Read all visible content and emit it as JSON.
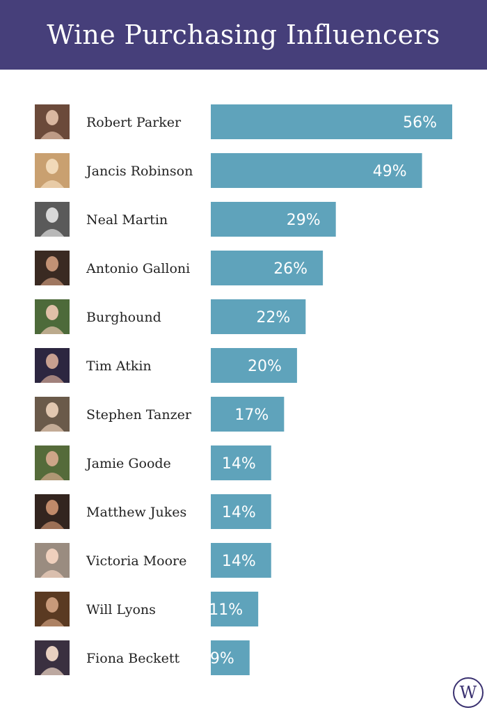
{
  "title": "Wine Purchasing Influencers",
  "colors": {
    "header_bg": "#463f7a",
    "bar": "#5fa3bb",
    "logo": "#3a3170"
  },
  "logo_letter": "W",
  "chart_data": {
    "type": "bar",
    "orientation": "horizontal",
    "title": "Wine Purchasing Influencers",
    "xlabel": "",
    "ylabel": "",
    "xlim": [
      0,
      56
    ],
    "grid": false,
    "value_suffix": "%",
    "categories": [
      "Robert Parker",
      "Jancis Robinson",
      "Neal Martin",
      "Antonio Galloni",
      "Burghound",
      "Tim Atkin",
      "Stephen Tanzer",
      "Jamie Goode",
      "Matthew Jukes",
      "Victoria Moore",
      "Will Lyons",
      "Fiona Beckett"
    ],
    "values": [
      56,
      49,
      29,
      26,
      22,
      20,
      17,
      14,
      14,
      14,
      11,
      9
    ],
    "labels": [
      "56%",
      "49%",
      "29%",
      "26%",
      "22%",
      "20%",
      "17%",
      "14%",
      "14%",
      "14%",
      "11%",
      "9%"
    ]
  }
}
